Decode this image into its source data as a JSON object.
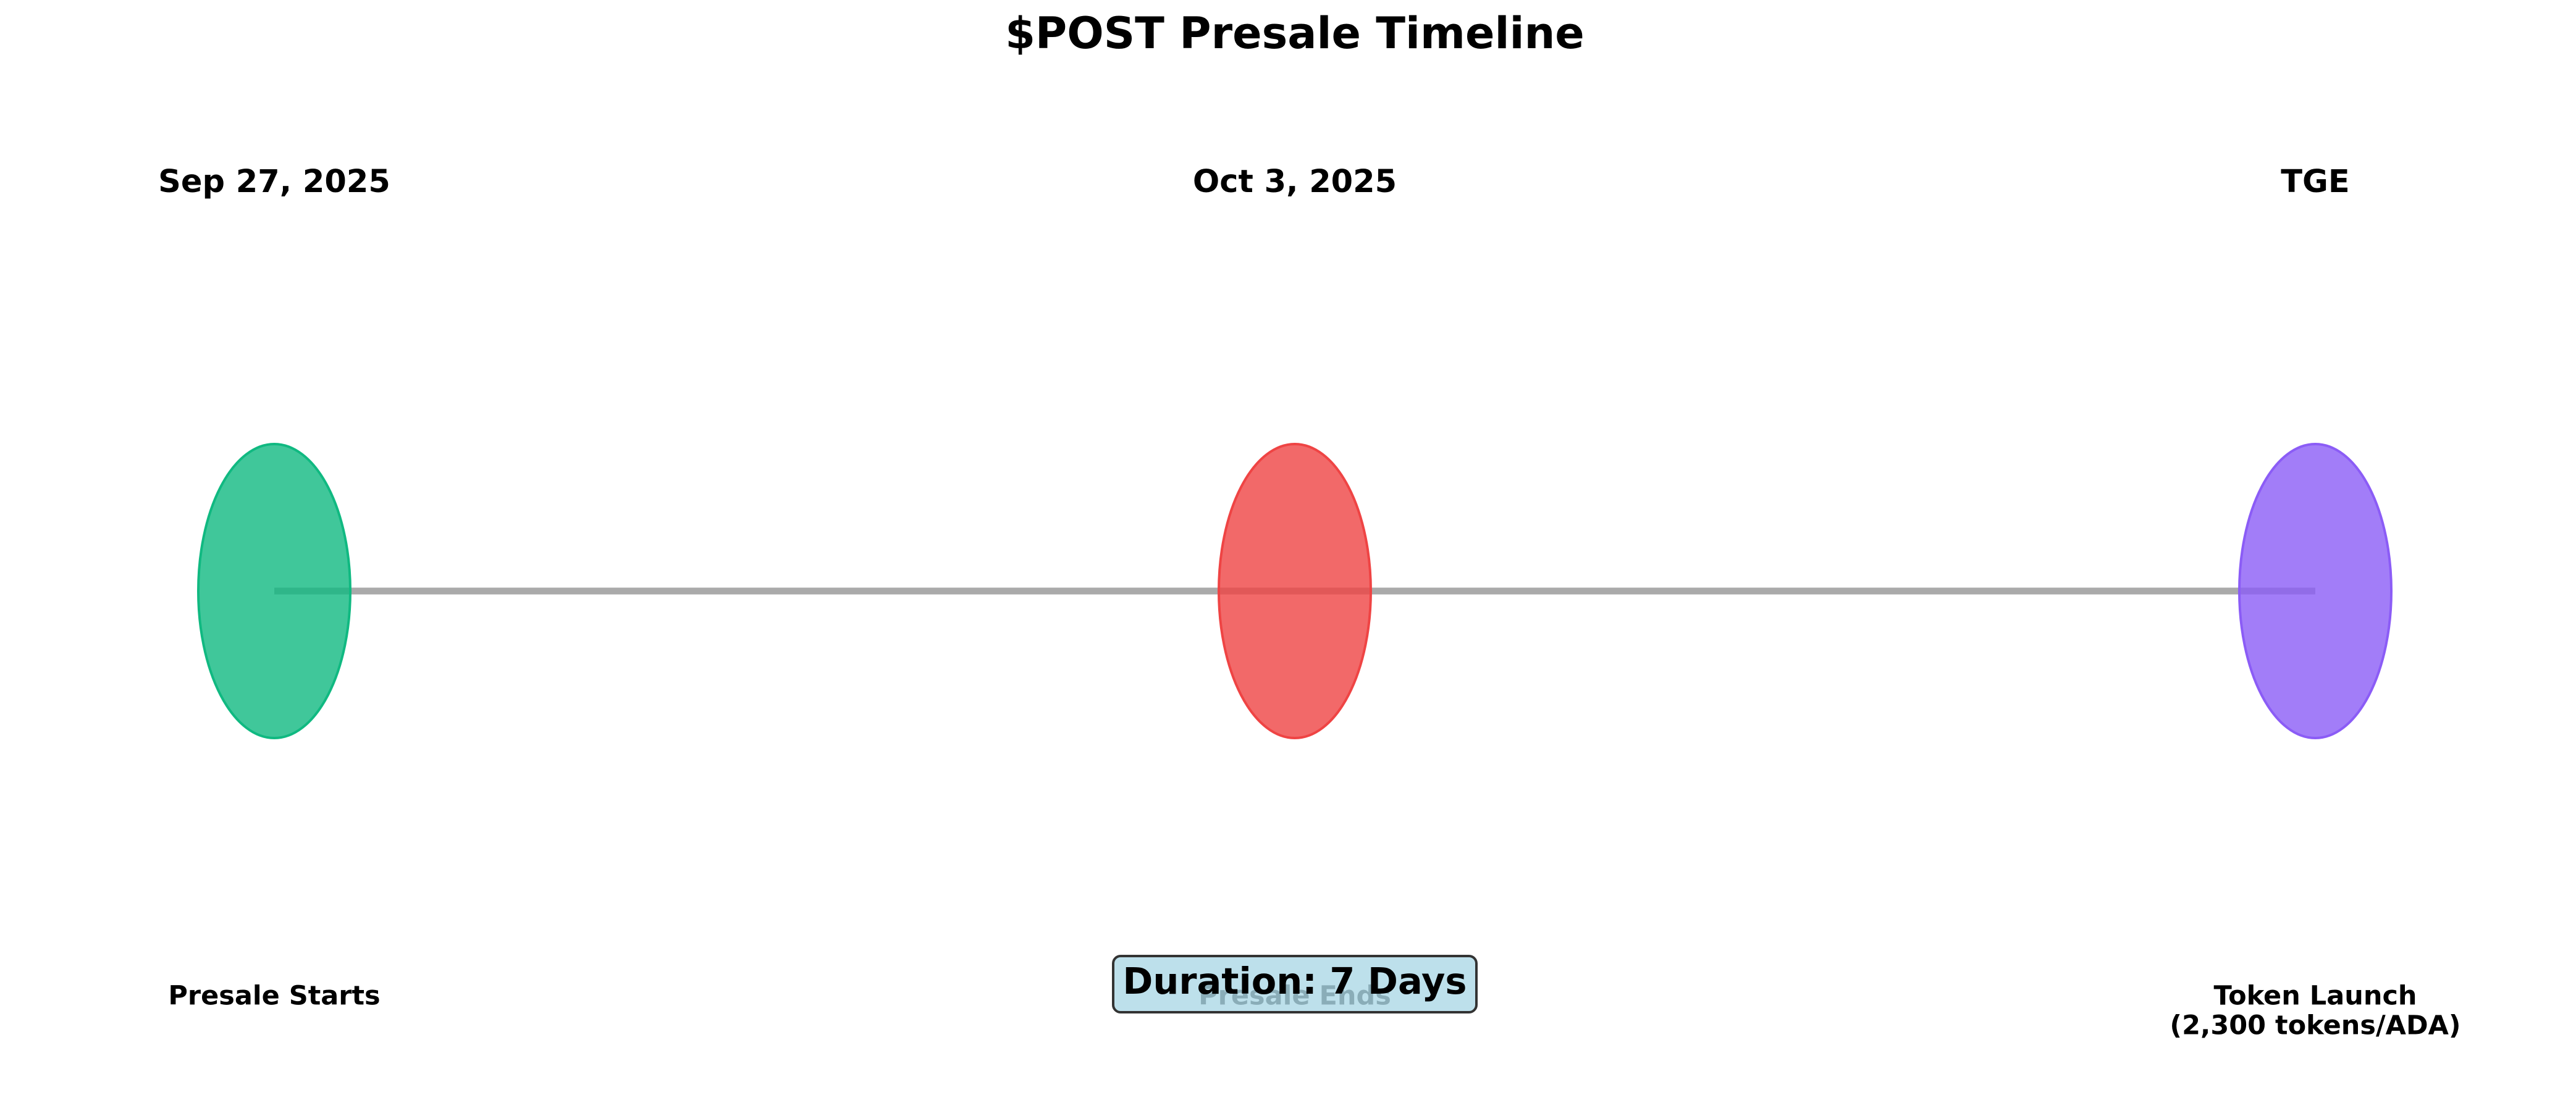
{
  "title": "$POST Presale Timeline",
  "events": [
    {
      "date": "Sep 27, 2025",
      "label": [
        "Presale Starts"
      ],
      "color": "#10b981"
    },
    {
      "date": "Oct 3, 2025",
      "label": [
        "Presale Ends"
      ],
      "color": "#ef4444"
    },
    {
      "date": "TGE",
      "label": [
        "Token Launch",
        "(2,300 tokens/ADA)"
      ],
      "color": "#8b5cf6"
    }
  ],
  "duration_note": "Duration: 7 Days",
  "connector_color": "#aaaaaa",
  "note_color": "#add8e6"
}
